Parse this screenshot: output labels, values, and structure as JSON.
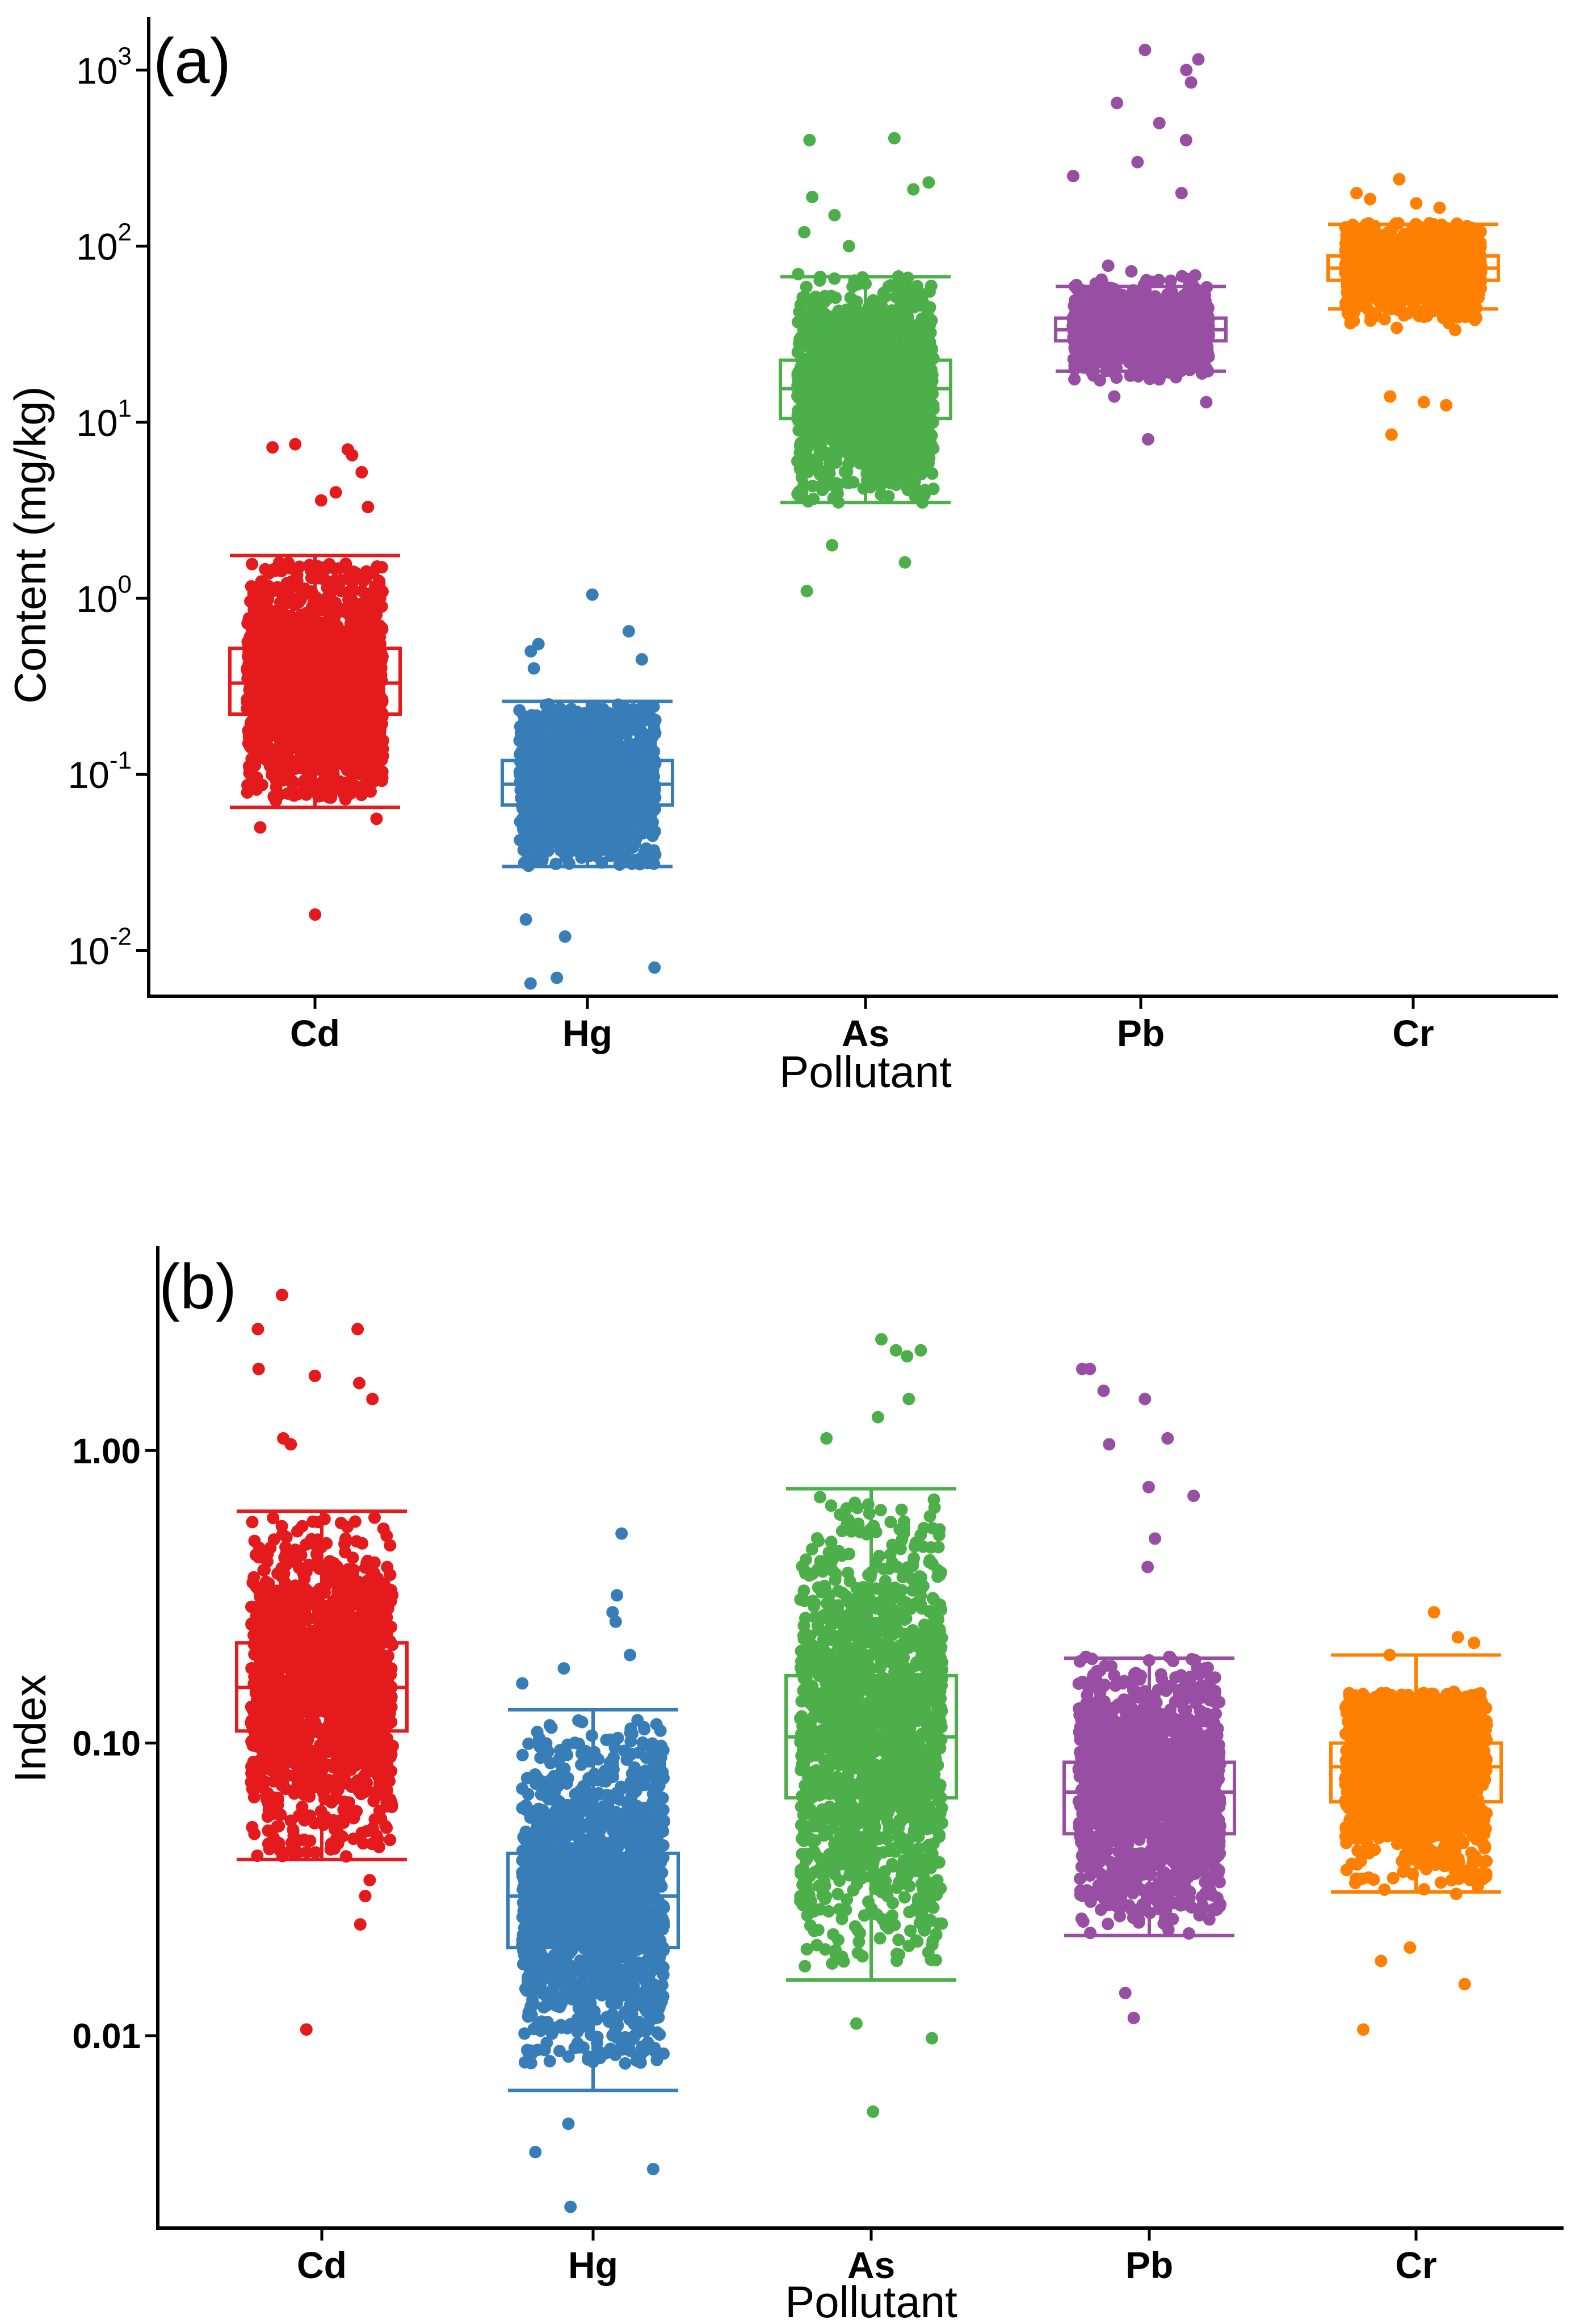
{
  "chart_data": [
    {
      "id": "a",
      "type": "box-jitter",
      "panel_label": "(a)",
      "xlabel": "Pollutant",
      "ylabel": "Content (mg/kg)",
      "yscale": "log10",
      "ylim": [
        0.0055,
        2000
      ],
      "yticks": [
        {
          "base": "10",
          "exp": "-2",
          "value": 0.01
        },
        {
          "base": "10",
          "exp": "-1",
          "value": 0.1
        },
        {
          "base": "10",
          "exp": "0",
          "value": 1
        },
        {
          "base": "10",
          "exp": "1",
          "value": 10
        },
        {
          "base": "10",
          "exp": "2",
          "value": 100
        },
        {
          "base": "10",
          "exp": "3",
          "value": 1000
        }
      ],
      "categories": [
        "Cd",
        "Hg",
        "As",
        "Pb",
        "Cr"
      ],
      "colors": [
        "#E41A1C",
        "#377EB8",
        "#4DAF4A",
        "#984EA3",
        "#FF7F00"
      ],
      "boxes": [
        {
          "category": "Cd",
          "whisker_low": 0.065,
          "q1": 0.22,
          "median": 0.33,
          "q3": 0.52,
          "whisker_high": 1.75,
          "cloud_low": 0.07,
          "cloud_high": 1.6,
          "outliers": [
            7.5,
            7.2,
            6.5,
            7.0,
            5.2,
            4.0,
            3.3,
            3.6,
            0.056,
            0.05,
            0.016
          ]
        },
        {
          "category": "Hg",
          "whisker_low": 0.03,
          "q1": 0.067,
          "median": 0.088,
          "q3": 0.12,
          "whisker_high": 0.26,
          "cloud_low": 0.03,
          "cloud_high": 0.25,
          "outliers": [
            1.05,
            0.65,
            0.55,
            0.5,
            0.45,
            0.4,
            0.008,
            0.0065,
            0.007,
            0.012,
            0.015
          ]
        },
        {
          "category": "As",
          "whisker_low": 3.5,
          "q1": 10.5,
          "median": 15.5,
          "q3": 22.5,
          "whisker_high": 67,
          "cloud_low": 3.5,
          "cloud_high": 70,
          "outliers": [
            400,
            410,
            230,
            210,
            190,
            150,
            120,
            100,
            2.0,
            1.6,
            1.1
          ]
        },
        {
          "category": "Pb",
          "whisker_low": 19.5,
          "q1": 29,
          "median": 33.5,
          "q3": 39,
          "whisker_high": 59,
          "cloud_low": 17,
          "cloud_high": 120,
          "outliers": [
            1300,
            1150,
            1000,
            850,
            650,
            500,
            400,
            300,
            250,
            200,
            8.0,
            13,
            14
          ]
        },
        {
          "category": "Cr",
          "whisker_low": 44,
          "q1": 64,
          "median": 75,
          "q3": 88,
          "whisker_high": 133,
          "cloud_low": 25,
          "cloud_high": 135,
          "outliers": [
            240,
            200,
            185,
            175,
            165,
            12.5,
            13,
            14,
            8.5
          ]
        }
      ]
    },
    {
      "id": "b",
      "type": "box-jitter",
      "panel_label": "(b)",
      "xlabel": "Pollutant",
      "ylabel": "Index",
      "yscale": "log10",
      "ylim": [
        0.0022,
        5
      ],
      "yticks": [
        {
          "label": "0.01",
          "value": 0.01
        },
        {
          "label": "0.10",
          "value": 0.1
        },
        {
          "label": "1.00",
          "value": 1
        }
      ],
      "categories": [
        "Cd",
        "Hg",
        "As",
        "Pb",
        "Cr"
      ],
      "colors": [
        "#E41A1C",
        "#377EB8",
        "#4DAF4A",
        "#984EA3",
        "#FF7F00"
      ],
      "boxes": [
        {
          "category": "Cd",
          "whisker_low": 0.04,
          "q1": 0.11,
          "median": 0.155,
          "q3": 0.22,
          "whisker_high": 0.62,
          "cloud_low": 0.04,
          "cloud_high": 0.6,
          "outliers": [
            3.4,
            2.6,
            2.6,
            1.9,
            1.8,
            1.7,
            1.5,
            1.1,
            1.05,
            0.034,
            0.03,
            0.024,
            0.0105
          ]
        },
        {
          "category": "Hg",
          "whisker_low": 0.0065,
          "q1": 0.02,
          "median": 0.03,
          "q3": 0.042,
          "whisker_high": 0.13,
          "cloud_low": 0.008,
          "cloud_high": 0.12,
          "outliers": [
            0.52,
            0.32,
            0.28,
            0.26,
            0.2,
            0.18,
            0.16,
            0.005,
            0.004,
            0.0035,
            0.0026
          ]
        },
        {
          "category": "As",
          "whisker_low": 0.0155,
          "q1": 0.065,
          "median": 0.105,
          "q3": 0.17,
          "whisker_high": 0.74,
          "cloud_low": 0.017,
          "cloud_high": 0.7,
          "outliers": [
            2.4,
            2.2,
            2.2,
            2.1,
            1.5,
            1.3,
            1.1,
            0.011,
            0.0098,
            0.0055
          ]
        },
        {
          "category": "Pb",
          "whisker_low": 0.022,
          "q1": 0.049,
          "median": 0.068,
          "q3": 0.086,
          "whisker_high": 0.195,
          "cloud_low": 0.022,
          "cloud_high": 0.2,
          "outliers": [
            1.9,
            1.9,
            1.6,
            1.5,
            1.1,
            1.05,
            0.75,
            0.7,
            0.5,
            0.4,
            0.014,
            0.0115
          ]
        },
        {
          "category": "Cr",
          "whisker_low": 0.031,
          "q1": 0.063,
          "median": 0.083,
          "q3": 0.1,
          "whisker_high": 0.2,
          "cloud_low": 0.03,
          "cloud_high": 0.15,
          "outliers": [
            0.28,
            0.23,
            0.22,
            0.2,
            0.02,
            0.018,
            0.015,
            0.0105
          ]
        }
      ]
    }
  ]
}
